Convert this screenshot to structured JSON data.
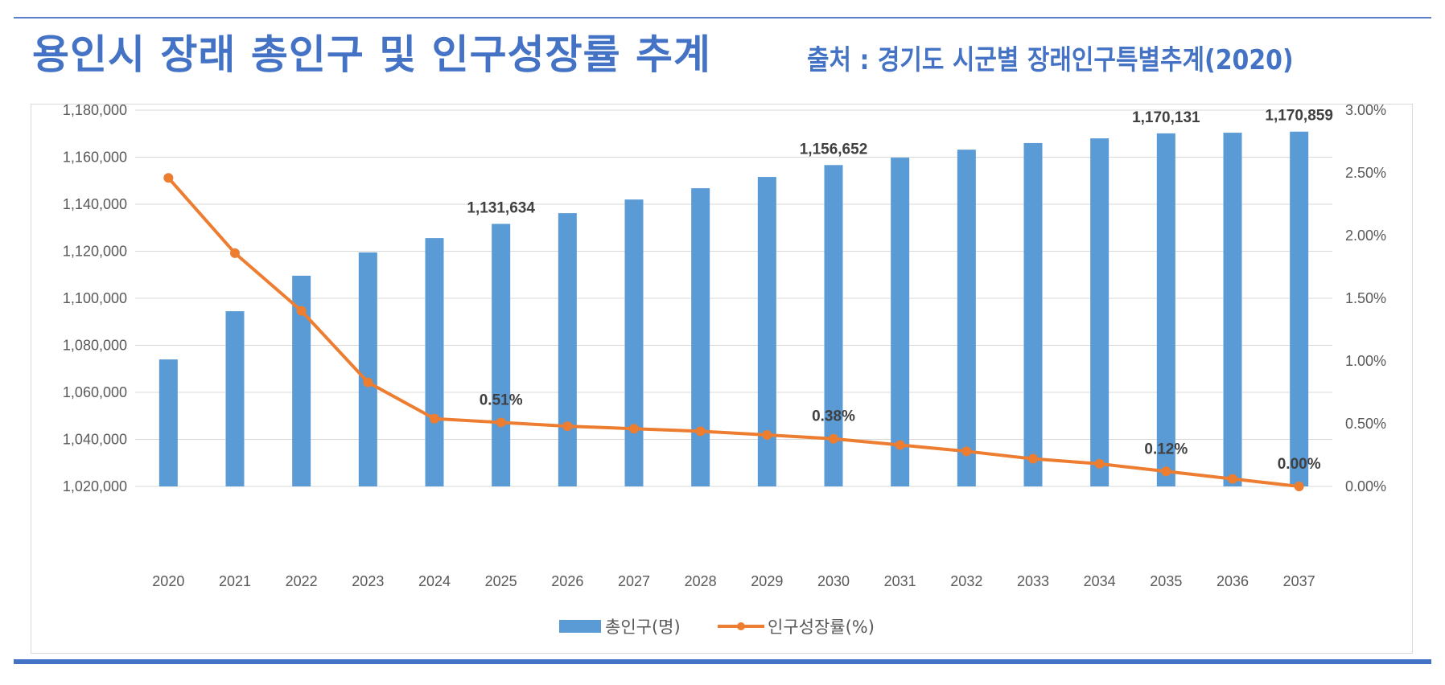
{
  "header": {
    "title": "용인시 장래 총인구 및 인구성장률 추계",
    "source": "출처 : 경기도 시군별 장래인구특별추계(2020)"
  },
  "colors": {
    "bar": "#5b9bd5",
    "line": "#ed7d31",
    "accent": "#4472c4",
    "grid": "#d9d9d9"
  },
  "chart_data": {
    "type": "bar",
    "title": "용인시 장래 총인구 및 인구성장률 추계",
    "categories": [
      "2020",
      "2021",
      "2022",
      "2023",
      "2024",
      "2025",
      "2026",
      "2027",
      "2028",
      "2029",
      "2030",
      "2031",
      "2032",
      "2033",
      "2034",
      "2035",
      "2036",
      "2037"
    ],
    "series": [
      {
        "name": "총인구(명)",
        "type": "bar",
        "axis": "left",
        "values": [
          1074000,
          1094500,
          1109600,
          1119500,
          1125600,
          1131634,
          1136200,
          1142000,
          1146800,
          1151600,
          1156652,
          1159800,
          1163200,
          1166000,
          1168000,
          1170131,
          1170400,
          1170859
        ]
      },
      {
        "name": "인구성장률(%)",
        "type": "line",
        "axis": "right",
        "values": [
          2.46,
          1.86,
          1.4,
          0.83,
          0.54,
          0.51,
          0.48,
          0.46,
          0.44,
          0.41,
          0.38,
          0.33,
          0.28,
          0.22,
          0.18,
          0.12,
          0.06,
          0.0
        ]
      }
    ],
    "bar_data_labels": [
      {
        "category": "2025",
        "text": "1,131,634"
      },
      {
        "category": "2030",
        "text": "1,156,652"
      },
      {
        "category": "2035",
        "text": "1,170,131"
      },
      {
        "category": "2037",
        "text": "1,170,859"
      }
    ],
    "line_data_labels": [
      {
        "category": "2025",
        "text": "0.51%"
      },
      {
        "category": "2030",
        "text": "0.38%"
      },
      {
        "category": "2035",
        "text": "0.12%"
      },
      {
        "category": "2037",
        "text": "0.00%"
      }
    ],
    "y_left": {
      "ylim": [
        1020000,
        1180000
      ],
      "ticks": [
        1020000,
        1040000,
        1060000,
        1080000,
        1100000,
        1120000,
        1140000,
        1160000,
        1180000
      ],
      "tick_labels": [
        "1,020,000",
        "1,040,000",
        "1,060,000",
        "1,080,000",
        "1,100,000",
        "1,120,000",
        "1,140,000",
        "1,160,000",
        "1,180,000"
      ]
    },
    "y_right": {
      "ylim": [
        0,
        3.0
      ],
      "ticks": [
        0,
        0.5,
        1.0,
        1.5,
        2.0,
        2.5,
        3.0
      ],
      "tick_labels": [
        "0.00%",
        "0.50%",
        "1.00%",
        "1.50%",
        "2.00%",
        "2.50%",
        "3.00%"
      ]
    },
    "xlabel": "",
    "ylabel": "",
    "grid": true,
    "legend": {
      "position": "bottom",
      "entries": [
        "총인구(명)",
        "인구성장률(%)"
      ]
    }
  }
}
